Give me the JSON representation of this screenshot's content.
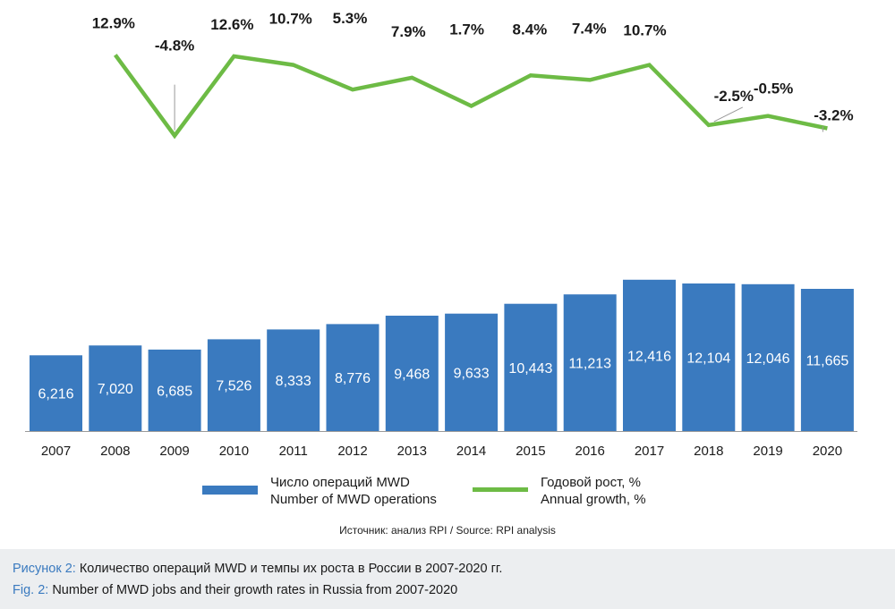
{
  "chart_data": {
    "type": "bar+line",
    "categories": [
      "2007",
      "2008",
      "2009",
      "2010",
      "2011",
      "2012",
      "2013",
      "2014",
      "2015",
      "2016",
      "2017",
      "2018",
      "2019",
      "2020"
    ],
    "series": [
      {
        "name": "Число операций MWD / Number of MWD operations",
        "type": "bar",
        "values": [
          6216,
          7020,
          6685,
          7526,
          8333,
          8776,
          9468,
          9633,
          10443,
          11213,
          12416,
          12104,
          12046,
          11665
        ],
        "labels": [
          "6,216",
          "7,020",
          "6,685",
          "7,526",
          "8,333",
          "8,776",
          "9,468",
          "9,633",
          "10,443",
          "11,213",
          "12,416",
          "12,104",
          "12,046",
          "11,665"
        ]
      },
      {
        "name": "Годовой рост, % / Annual growth, %",
        "type": "line",
        "x": [
          "2008",
          "2009",
          "2010",
          "2011",
          "2012",
          "2013",
          "2014",
          "2015",
          "2016",
          "2017",
          "2018",
          "2019",
          "2020"
        ],
        "values": [
          12.9,
          -4.8,
          12.6,
          10.7,
          5.3,
          7.9,
          1.7,
          8.4,
          7.4,
          10.7,
          -2.5,
          -0.5,
          -3.2
        ],
        "labels": [
          "12.9%",
          "-4.8%",
          "12.6%",
          "10.7%",
          "5.3%",
          "7.9%",
          "1.7%",
          "8.4%",
          "7.4%",
          "10.7%",
          "-2.5%",
          "-0.5%",
          "-3.2%"
        ]
      }
    ],
    "colors": {
      "bar": "#3a7abf",
      "line": "#6dbb45"
    }
  },
  "legend": {
    "bars_ru": "Число операций MWD",
    "bars_en": "Number of MWD operations",
    "line_ru": "Годовой рост, %",
    "line_en": "Annual growth, %"
  },
  "source": "Источник: анализ RPI / Source: RPI analysis",
  "caption": {
    "ru_prefix": "Рисунок 2:",
    "ru_text": " Количество операций MWD и темпы их роста в России в 2007-2020 гг.",
    "en_prefix": "Fig. 2:",
    "en_text": " Number of MWD jobs and their growth rates in Russia from 2007-2020"
  }
}
